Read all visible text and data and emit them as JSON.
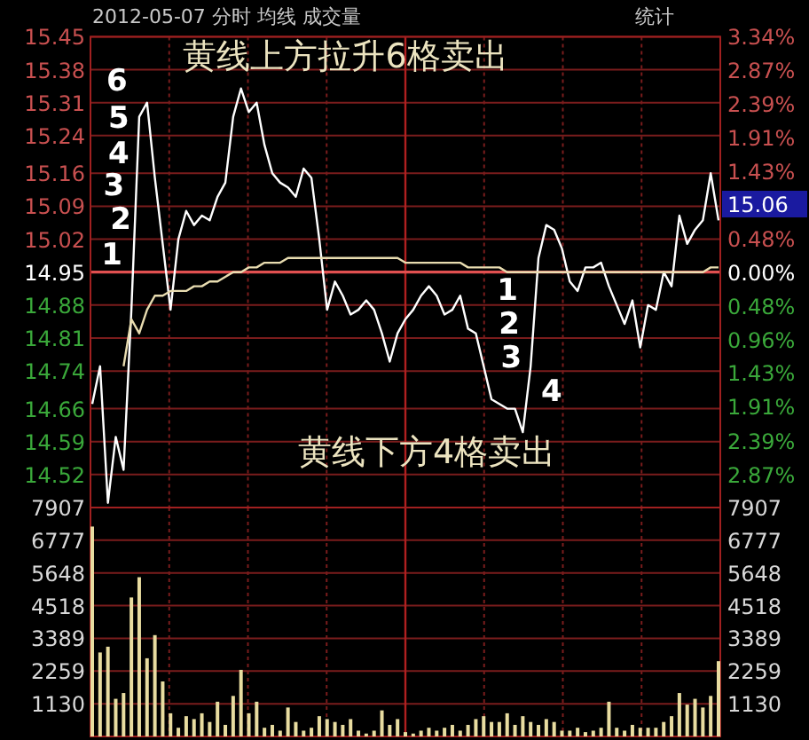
{
  "chart_data": [
    {
      "type": "line",
      "title": "2012-05-07 分时 均线 成交量",
      "categories": [
        null,
        null,
        null,
        null,
        null,
        null,
        null,
        null,
        null,
        null,
        null,
        null,
        null,
        null,
        null,
        null,
        null,
        null,
        null,
        null,
        null,
        null,
        null,
        null,
        null,
        null,
        null,
        null,
        null,
        null,
        null,
        null,
        null,
        null,
        null,
        null,
        null,
        null,
        null,
        null,
        null,
        null,
        null,
        null,
        null,
        null,
        null,
        null,
        null,
        null,
        null,
        null,
        null,
        null,
        null,
        null,
        null,
        null,
        null,
        null,
        null,
        null,
        null,
        null,
        null,
        null,
        null,
        null,
        null,
        null,
        null,
        null,
        null,
        null,
        null,
        null,
        null,
        null,
        null,
        null,
        null
      ],
      "series": [
        {
          "color": "#ffffff",
          "values": [
            14.67,
            14.75,
            14.46,
            14.6,
            14.53,
            14.87,
            15.28,
            15.31,
            15.15,
            15.01,
            14.87,
            15.02,
            15.08,
            15.05,
            15.07,
            15.06,
            15.11,
            15.14,
            15.28,
            15.34,
            15.29,
            15.31,
            15.22,
            15.16,
            15.14,
            15.13,
            15.11,
            15.17,
            15.15,
            15.02,
            14.87,
            14.93,
            14.9,
            14.86,
            14.87,
            14.89,
            14.87,
            14.82,
            14.76,
            14.82,
            14.85,
            14.87,
            14.9,
            14.92,
            14.9,
            14.86,
            14.87,
            14.9,
            14.83,
            14.82,
            14.75,
            14.68,
            14.67,
            14.66,
            14.66,
            14.61,
            14.75,
            14.98,
            15.05,
            15.04,
            15,
            14.93,
            14.91,
            14.96,
            14.96,
            14.97,
            14.92,
            14.88,
            14.84,
            14.89,
            14.79,
            14.88,
            14.87,
            14.95,
            14.92,
            15.07,
            15.01,
            15.04,
            15.06,
            15.16,
            15.06
          ]
        },
        {
          "color": "#e8dcb0",
          "values": [
            null,
            null,
            null,
            null,
            14.75,
            14.85,
            14.82,
            14.87,
            14.9,
            14.9,
            14.91,
            14.91,
            14.91,
            14.92,
            14.92,
            14.93,
            14.93,
            14.94,
            14.95,
            14.95,
            14.96,
            14.96,
            14.97,
            14.97,
            14.97,
            14.98,
            14.98,
            14.98,
            14.98,
            14.98,
            14.98,
            14.98,
            14.98,
            14.98,
            14.98,
            14.98,
            14.98,
            14.98,
            14.98,
            14.98,
            14.97,
            14.97,
            14.97,
            14.97,
            14.97,
            14.97,
            14.97,
            14.97,
            14.96,
            14.96,
            14.96,
            14.96,
            14.96,
            14.95,
            14.95,
            14.95,
            14.95,
            14.95,
            14.95,
            14.95,
            14.95,
            14.95,
            14.95,
            14.95,
            14.95,
            14.95,
            14.95,
            14.95,
            14.95,
            14.95,
            14.95,
            14.95,
            14.95,
            14.95,
            14.95,
            14.95,
            14.95,
            14.95,
            14.95,
            14.96,
            14.96
          ]
        }
      ],
      "ylim": [
        14.45,
        15.45
      ],
      "yticks": [
        14.52,
        14.59,
        14.66,
        14.74,
        14.81,
        14.88,
        14.95,
        15.02,
        15.09,
        15.16,
        15.24,
        15.31,
        15.38,
        15.45
      ],
      "y2lim": [
        -3.34,
        3.34
      ],
      "y2ticks": [
        {
          "value": 3.34,
          "label": "3.34%"
        },
        {
          "value": 2.87,
          "label": "2.87%"
        },
        {
          "value": 2.39,
          "label": "2.39%"
        },
        {
          "value": 1.91,
          "label": "1.91%"
        },
        {
          "value": 1.43,
          "label": "1.43%"
        },
        {
          "value": 0.96,
          "label": null
        },
        {
          "value": 0.48,
          "label": "0.48%"
        },
        {
          "value": 0,
          "label": "0.00%"
        },
        {
          "value": -0.48,
          "label": "0.48%"
        },
        {
          "value": -0.96,
          "label": "0.96%"
        },
        {
          "value": -1.43,
          "label": "1.43%"
        },
        {
          "value": -1.91,
          "label": "1.91%"
        },
        {
          "value": -2.39,
          "label": "2.39%"
        },
        {
          "value": -2.87,
          "label": "2.87%"
        }
      ],
      "tick_labels": "y",
      "grid": true,
      "ref_lines": [
        {
          "axis": "y",
          "value": 14.95,
          "color": "#e05050"
        }
      ],
      "annotations": [
        "统计",
        "黄线上方拉升6格卖出",
        "黄线下方4格卖出",
        "6",
        "5",
        "4",
        "3",
        "2",
        "1",
        "1",
        "2",
        "3",
        "4",
        "15.06"
      ]
    },
    {
      "type": "bar",
      "color": "#e8dca0",
      "categories": [
        null,
        null,
        null,
        null,
        null,
        null,
        null,
        null,
        null,
        null,
        null,
        null,
        null,
        null,
        null,
        null,
        null,
        null,
        null,
        null,
        null,
        null,
        null,
        null,
        null,
        null,
        null,
        null,
        null,
        null,
        null,
        null,
        null,
        null,
        null,
        null,
        null,
        null,
        null,
        null,
        null,
        null,
        null,
        null,
        null,
        null,
        null,
        null,
        null,
        null,
        null,
        null,
        null,
        null,
        null,
        null,
        null,
        null,
        null,
        null,
        null,
        null,
        null,
        null,
        null,
        null,
        null,
        null,
        null,
        null,
        null,
        null,
        null,
        null,
        null,
        null,
        null,
        null,
        null,
        null,
        null
      ],
      "values": [
        7250,
        2900,
        3100,
        1300,
        1500,
        4800,
        5500,
        2700,
        3500,
        1900,
        800,
        300,
        700,
        600,
        800,
        500,
        1200,
        400,
        1400,
        2300,
        800,
        1200,
        300,
        400,
        200,
        1000,
        500,
        200,
        300,
        700,
        600,
        500,
        400,
        600,
        200,
        100,
        200,
        900,
        400,
        600,
        150,
        100,
        200,
        300,
        200,
        300,
        400,
        200,
        400,
        600,
        700,
        500,
        500,
        800,
        400,
        700,
        500,
        400,
        600,
        500,
        200,
        200,
        300,
        150,
        200,
        300,
        1200,
        300,
        200,
        400,
        300,
        300,
        300,
        500,
        700,
        1500,
        1100,
        1300,
        1000,
        1400,
        2600
      ],
      "ylim": [
        0,
        7907
      ],
      "yticks": [
        1130,
        2259,
        3389,
        4518,
        5648,
        6777,
        7907
      ],
      "y2lim": [
        0,
        7907
      ],
      "y2ticks": [
        1130,
        2259,
        3389,
        4518,
        5648,
        6777,
        7907
      ],
      "tick_labels": "y",
      "grid": true
    }
  ]
}
